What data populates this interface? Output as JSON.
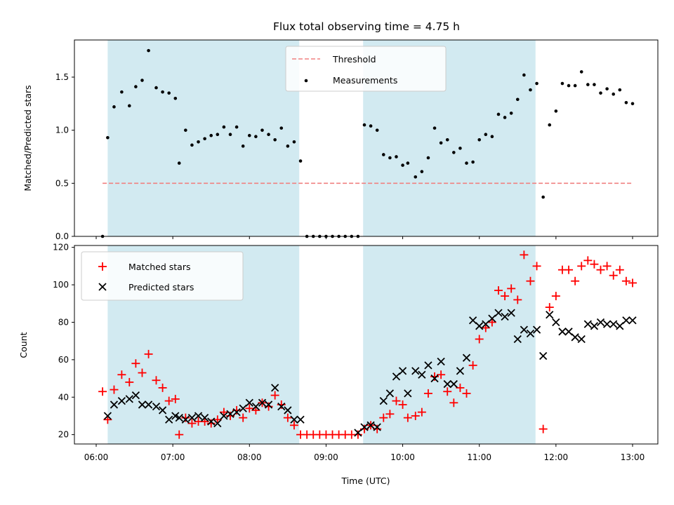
{
  "chart_data": [
    {
      "panel": "top",
      "type": "scatter",
      "title": "Flux total observing time = 4.75 h",
      "ylabel": "Matched/Predicted stars",
      "xlim": [
        "06:00",
        "13:00"
      ],
      "ylim": [
        0,
        1.85
      ],
      "yticks": [
        "0.0",
        "0.5",
        "1.0",
        "1.5"
      ],
      "legend_position": "top-center",
      "shaded_intervals": [
        [
          "06:09",
          "08:39"
        ],
        [
          "09:29",
          "11:44"
        ]
      ],
      "threshold": {
        "name": "Threshold",
        "value": 0.5,
        "x_range": [
          "06:05",
          "13:00"
        ],
        "color": "#f08080",
        "style": "dashed"
      },
      "measurements": {
        "name": "Measurements",
        "color": "#000000",
        "points": [
          [
            "06:05",
            0.0
          ],
          [
            "06:09",
            0.93
          ],
          [
            "06:14",
            1.22
          ],
          [
            "06:20",
            1.36
          ],
          [
            "06:26",
            1.23
          ],
          [
            "06:31",
            1.41
          ],
          [
            "06:36",
            1.47
          ],
          [
            "06:41",
            1.75
          ],
          [
            "06:47",
            1.4
          ],
          [
            "06:52",
            1.36
          ],
          [
            "06:57",
            1.35
          ],
          [
            "07:02",
            1.3
          ],
          [
            "07:05",
            0.69
          ],
          [
            "07:10",
            1.0
          ],
          [
            "07:15",
            0.86
          ],
          [
            "07:20",
            0.89
          ],
          [
            "07:25",
            0.92
          ],
          [
            "07:30",
            0.95
          ],
          [
            "07:35",
            0.96
          ],
          [
            "07:40",
            1.03
          ],
          [
            "07:45",
            0.96
          ],
          [
            "07:50",
            1.03
          ],
          [
            "07:55",
            0.85
          ],
          [
            "08:00",
            0.95
          ],
          [
            "08:05",
            0.94
          ],
          [
            "08:10",
            1.0
          ],
          [
            "08:15",
            0.96
          ],
          [
            "08:20",
            0.91
          ],
          [
            "08:25",
            1.02
          ],
          [
            "08:30",
            0.85
          ],
          [
            "08:35",
            0.89
          ],
          [
            "08:40",
            0.71
          ],
          [
            "08:45",
            0.0
          ],
          [
            "08:50",
            0.0
          ],
          [
            "08:55",
            0.0
          ],
          [
            "09:00",
            0.0
          ],
          [
            "09:05",
            0.0
          ],
          [
            "09:10",
            0.0
          ],
          [
            "09:15",
            0.0
          ],
          [
            "09:20",
            0.0
          ],
          [
            "09:25",
            0.0
          ],
          [
            "09:30",
            1.05
          ],
          [
            "09:35",
            1.04
          ],
          [
            "09:40",
            1.0
          ],
          [
            "09:45",
            0.77
          ],
          [
            "09:50",
            0.74
          ],
          [
            "09:55",
            0.75
          ],
          [
            "10:00",
            0.67
          ],
          [
            "10:04",
            0.69
          ],
          [
            "10:10",
            0.56
          ],
          [
            "10:15",
            0.61
          ],
          [
            "10:20",
            0.74
          ],
          [
            "10:25",
            1.02
          ],
          [
            "10:30",
            0.88
          ],
          [
            "10:35",
            0.91
          ],
          [
            "10:40",
            0.79
          ],
          [
            "10:45",
            0.83
          ],
          [
            "10:50",
            0.69
          ],
          [
            "10:55",
            0.7
          ],
          [
            "11:00",
            0.91
          ],
          [
            "11:05",
            0.96
          ],
          [
            "11:10",
            0.94
          ],
          [
            "11:15",
            1.15
          ],
          [
            "11:20",
            1.12
          ],
          [
            "11:25",
            1.16
          ],
          [
            "11:30",
            1.29
          ],
          [
            "11:35",
            1.52
          ],
          [
            "11:40",
            1.38
          ],
          [
            "11:45",
            1.44
          ],
          [
            "11:50",
            0.37
          ],
          [
            "11:55",
            1.05
          ],
          [
            "12:00",
            1.18
          ],
          [
            "12:05",
            1.44
          ],
          [
            "12:10",
            1.42
          ],
          [
            "12:15",
            1.42
          ],
          [
            "12:20",
            1.55
          ],
          [
            "12:25",
            1.43
          ],
          [
            "12:30",
            1.43
          ],
          [
            "12:35",
            1.35
          ],
          [
            "12:40",
            1.39
          ],
          [
            "12:45",
            1.34
          ],
          [
            "12:50",
            1.38
          ],
          [
            "12:55",
            1.26
          ],
          [
            "13:00",
            1.25
          ]
        ]
      }
    },
    {
      "panel": "bottom",
      "type": "scatter",
      "xlabel": "Time (UTC)",
      "ylabel": "Count",
      "xlim": [
        "06:00",
        "13:00"
      ],
      "ylim": [
        15,
        121
      ],
      "yticks": [
        "20",
        "40",
        "60",
        "80",
        "100",
        "120"
      ],
      "xticks": [
        "06:00",
        "07:00",
        "08:00",
        "09:00",
        "10:00",
        "11:00",
        "12:00",
        "13:00"
      ],
      "legend_position": "top-left",
      "shaded_intervals": [
        [
          "06:09",
          "08:39"
        ],
        [
          "09:29",
          "11:44"
        ]
      ],
      "series": [
        {
          "name": "Matched stars",
          "marker": "plus",
          "color": "#ff0000",
          "points": [
            [
              "06:05",
              43
            ],
            [
              "06:09",
              28
            ],
            [
              "06:14",
              44
            ],
            [
              "06:20",
              52
            ],
            [
              "06:26",
              48
            ],
            [
              "06:31",
              58
            ],
            [
              "06:36",
              53
            ],
            [
              "06:41",
              63
            ],
            [
              "06:47",
              49
            ],
            [
              "06:52",
              45
            ],
            [
              "06:57",
              38
            ],
            [
              "07:02",
              39
            ],
            [
              "07:05",
              20
            ],
            [
              "07:10",
              29
            ],
            [
              "07:15",
              26
            ],
            [
              "07:20",
              27
            ],
            [
              "07:25",
              27
            ],
            [
              "07:30",
              26
            ],
            [
              "07:35",
              28
            ],
            [
              "07:40",
              32
            ],
            [
              "07:45",
              30
            ],
            [
              "07:50",
              33
            ],
            [
              "07:55",
              29
            ],
            [
              "08:00",
              34
            ],
            [
              "08:05",
              33
            ],
            [
              "08:10",
              37
            ],
            [
              "08:15",
              35
            ],
            [
              "08:20",
              41
            ],
            [
              "08:25",
              36
            ],
            [
              "08:30",
              29
            ],
            [
              "08:35",
              25
            ],
            [
              "08:40",
              20
            ],
            [
              "08:45",
              20
            ],
            [
              "08:50",
              20
            ],
            [
              "08:55",
              20
            ],
            [
              "09:00",
              20
            ],
            [
              "09:05",
              20
            ],
            [
              "09:10",
              20
            ],
            [
              "09:15",
              20
            ],
            [
              "09:20",
              20
            ],
            [
              "09:25",
              20
            ],
            [
              "09:30",
              23
            ],
            [
              "09:35",
              25
            ],
            [
              "09:40",
              23
            ],
            [
              "09:45",
              29
            ],
            [
              "09:50",
              31
            ],
            [
              "09:55",
              38
            ],
            [
              "10:00",
              36
            ],
            [
              "10:04",
              29
            ],
            [
              "10:10",
              30
            ],
            [
              "10:15",
              32
            ],
            [
              "10:20",
              42
            ],
            [
              "10:25",
              51
            ],
            [
              "10:30",
              52
            ],
            [
              "10:35",
              43
            ],
            [
              "10:40",
              37
            ],
            [
              "10:45",
              45
            ],
            [
              "10:50",
              42
            ],
            [
              "10:55",
              57
            ],
            [
              "11:00",
              71
            ],
            [
              "11:05",
              77
            ],
            [
              "11:10",
              80
            ],
            [
              "11:15",
              97
            ],
            [
              "11:20",
              94
            ],
            [
              "11:25",
              98
            ],
            [
              "11:30",
              92
            ],
            [
              "11:35",
              116
            ],
            [
              "11:40",
              102
            ],
            [
              "11:45",
              110
            ],
            [
              "11:50",
              23
            ],
            [
              "11:55",
              88
            ],
            [
              "12:00",
              94
            ],
            [
              "12:05",
              108
            ],
            [
              "12:10",
              108
            ],
            [
              "12:15",
              102
            ],
            [
              "12:20",
              110
            ],
            [
              "12:25",
              113
            ],
            [
              "12:30",
              111
            ],
            [
              "12:35",
              108
            ],
            [
              "12:40",
              110
            ],
            [
              "12:45",
              105
            ],
            [
              "12:50",
              108
            ],
            [
              "12:55",
              102
            ],
            [
              "13:00",
              101
            ]
          ]
        },
        {
          "name": "Predicted stars",
          "marker": "x",
          "color": "#000000",
          "points": [
            [
              "06:09",
              30
            ],
            [
              "06:14",
              36
            ],
            [
              "06:20",
              38
            ],
            [
              "06:26",
              39
            ],
            [
              "06:31",
              41
            ],
            [
              "06:36",
              36
            ],
            [
              "06:41",
              36
            ],
            [
              "06:47",
              35
            ],
            [
              "06:52",
              33
            ],
            [
              "06:57",
              28
            ],
            [
              "07:02",
              30
            ],
            [
              "07:05",
              29
            ],
            [
              "07:10",
              28
            ],
            [
              "07:15",
              29
            ],
            [
              "07:20",
              30
            ],
            [
              "07:25",
              29
            ],
            [
              "07:30",
              27
            ],
            [
              "07:35",
              26
            ],
            [
              "07:40",
              30
            ],
            [
              "07:45",
              31
            ],
            [
              "07:50",
              32
            ],
            [
              "07:55",
              34
            ],
            [
              "08:00",
              37
            ],
            [
              "08:05",
              35
            ],
            [
              "08:10",
              37
            ],
            [
              "08:15",
              36
            ],
            [
              "08:20",
              45
            ],
            [
              "08:25",
              35
            ],
            [
              "08:30",
              33
            ],
            [
              "08:35",
              28
            ],
            [
              "08:40",
              28
            ],
            [
              "09:25",
              21
            ],
            [
              "09:30",
              24
            ],
            [
              "09:35",
              25
            ],
            [
              "09:40",
              24
            ],
            [
              "09:45",
              38
            ],
            [
              "09:50",
              42
            ],
            [
              "09:55",
              51
            ],
            [
              "10:00",
              54
            ],
            [
              "10:04",
              42
            ],
            [
              "10:10",
              54
            ],
            [
              "10:15",
              52
            ],
            [
              "10:20",
              57
            ],
            [
              "10:25",
              50
            ],
            [
              "10:30",
              59
            ],
            [
              "10:35",
              47
            ],
            [
              "10:40",
              47
            ],
            [
              "10:45",
              54
            ],
            [
              "10:50",
              61
            ],
            [
              "10:55",
              81
            ],
            [
              "11:00",
              78
            ],
            [
              "11:05",
              79
            ],
            [
              "11:10",
              82
            ],
            [
              "11:15",
              85
            ],
            [
              "11:20",
              83
            ],
            [
              "11:25",
              85
            ],
            [
              "11:30",
              71
            ],
            [
              "11:35",
              76
            ],
            [
              "11:40",
              74
            ],
            [
              "11:45",
              76
            ],
            [
              "11:50",
              62
            ],
            [
              "11:55",
              84
            ],
            [
              "12:00",
              80
            ],
            [
              "12:05",
              75
            ],
            [
              "12:10",
              75
            ],
            [
              "12:15",
              72
            ],
            [
              "12:20",
              71
            ],
            [
              "12:25",
              79
            ],
            [
              "12:30",
              78
            ],
            [
              "12:35",
              80
            ],
            [
              "12:40",
              79
            ],
            [
              "12:45",
              79
            ],
            [
              "12:50",
              78
            ],
            [
              "12:55",
              81
            ],
            [
              "13:00",
              81
            ]
          ]
        }
      ]
    }
  ],
  "colors": {
    "shade": "#add8e6",
    "threshold": "#f08080",
    "matched": "#ff0000",
    "predicted": "#000000",
    "measurement": "#000000"
  }
}
